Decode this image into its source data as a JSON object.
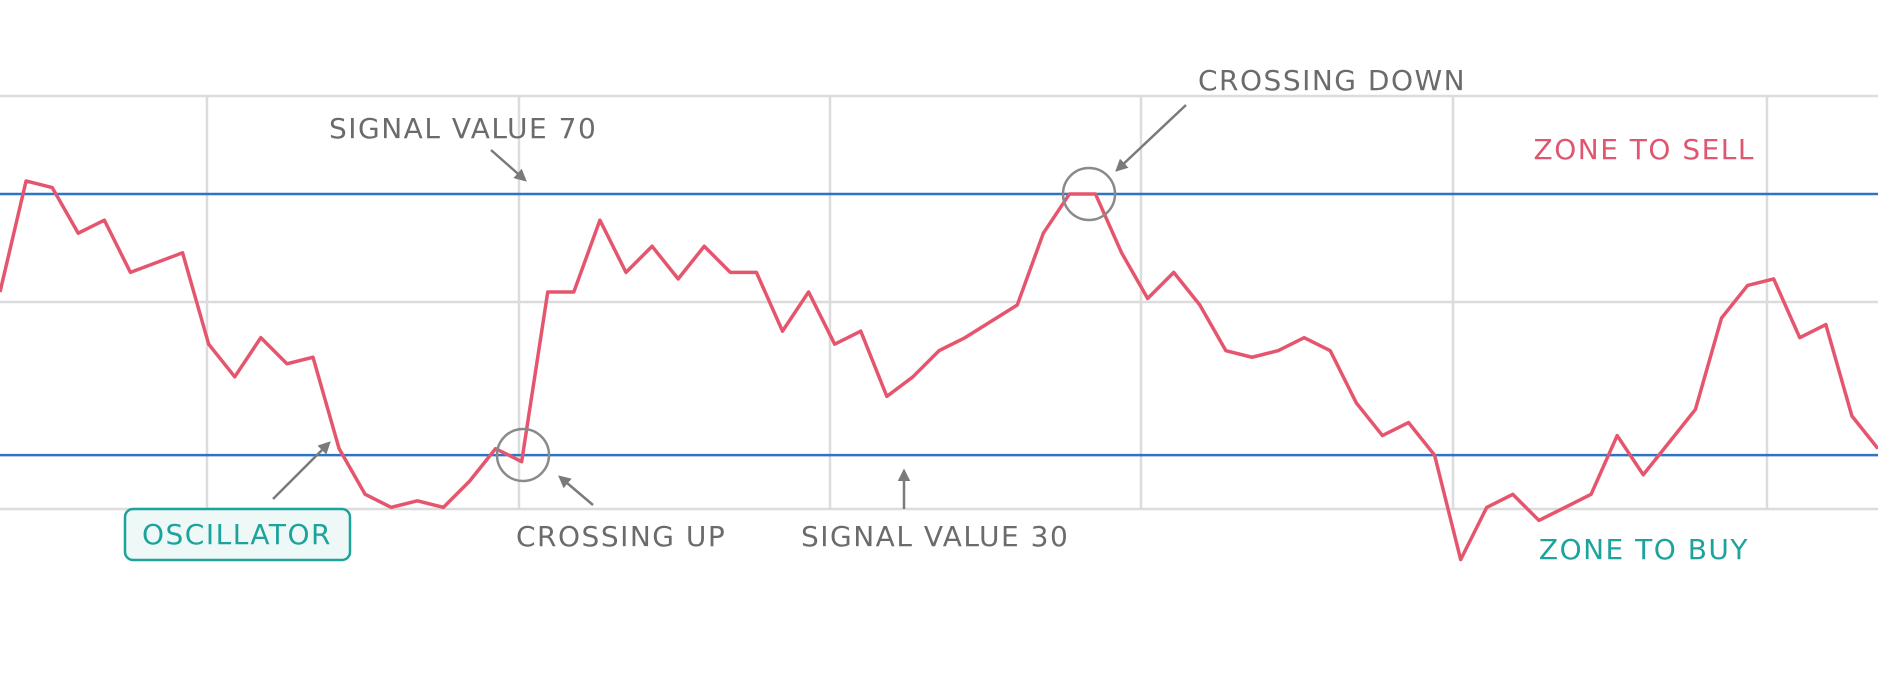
{
  "chart_data": {
    "type": "line",
    "x": [
      0,
      1,
      2,
      3,
      4,
      5,
      7,
      8,
      9,
      10,
      11,
      12,
      13,
      14,
      15,
      16,
      17,
      18,
      19,
      20,
      21,
      22,
      23,
      24,
      25,
      26,
      27,
      28,
      29,
      30,
      31,
      32,
      33,
      34,
      35,
      36,
      37,
      39,
      40,
      41,
      42,
      43,
      44,
      45,
      46,
      47,
      48,
      49,
      50,
      51,
      52,
      53,
      54,
      55,
      56,
      57,
      58,
      59,
      60,
      61,
      62,
      63,
      64,
      65,
      66,
      67,
      68,
      69,
      70,
      71,
      72
    ],
    "series": [
      {
        "color": "#e5566e",
        "values": [
          55,
          72,
          71,
          64,
          66,
          58,
          61,
          47,
          42,
          48,
          44,
          45,
          31,
          24,
          22,
          23,
          22,
          26,
          31,
          29,
          55,
          55,
          66,
          58,
          62,
          57,
          62,
          58,
          58,
          49,
          55,
          47,
          49,
          39,
          42,
          46,
          48,
          53,
          64,
          70,
          70,
          61,
          54,
          58,
          53,
          46,
          45,
          46,
          48,
          46,
          38,
          33,
          35,
          30,
          14,
          22,
          24,
          20,
          22,
          24,
          33,
          27,
          32,
          37,
          51,
          56,
          57,
          48,
          50,
          36,
          31
        ]
      }
    ],
    "xlim": [
      0,
      72
    ],
    "ylim": [
      0,
      100
    ],
    "signal_lines": [
      70,
      30
    ],
    "signal_color": "#2f74c0",
    "annotations": {
      "signal_high": "SIGNAL VALUE 70",
      "crossing_down": "CROSSING DOWN",
      "zone_sell": "ZONE TO SELL",
      "oscillator": "OSCILLATOR",
      "crossing_up": "CROSSING UP",
      "signal_low": "SIGNAL VALUE 30",
      "zone_buy": "ZONE TO BUY"
    }
  }
}
